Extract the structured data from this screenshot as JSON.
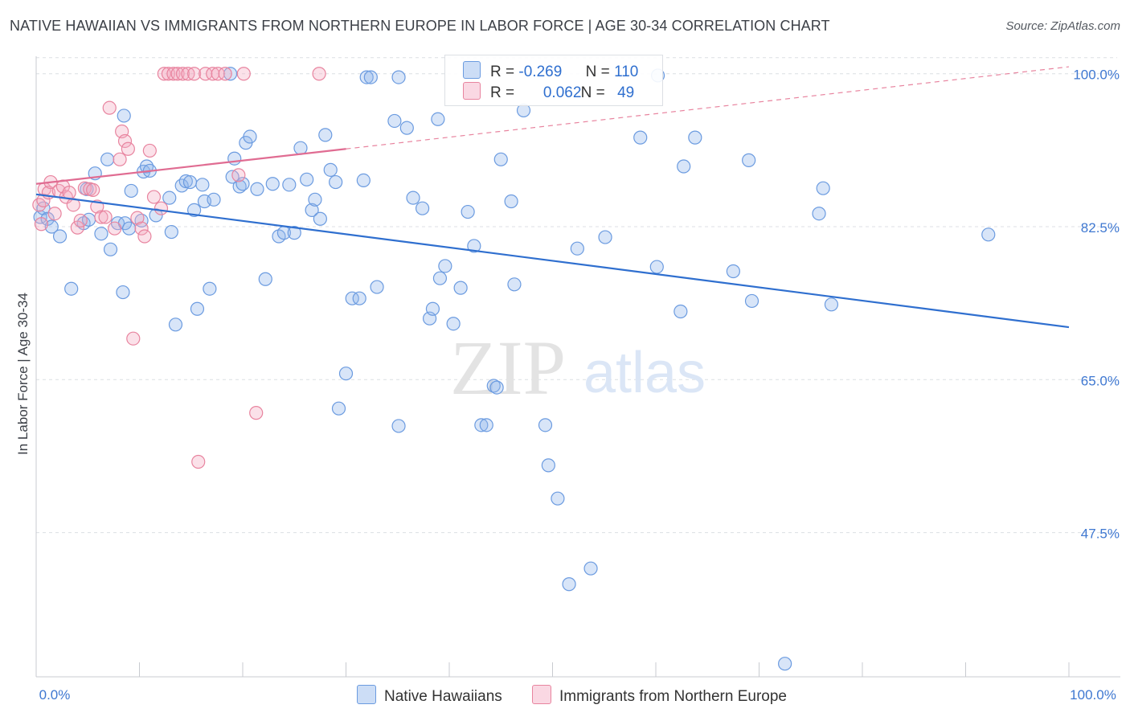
{
  "header": {
    "title": "NATIVE HAWAIIAN VS IMMIGRANTS FROM NORTHERN EUROPE IN LABOR FORCE | AGE 30-34 CORRELATION CHART",
    "source": "Source: ZipAtlas.com"
  },
  "watermark": {
    "zip": "ZIP",
    "atlas": "atlas"
  },
  "legend": {
    "rows": [
      {
        "r_label": "R =",
        "r_value": "-0.269",
        "n_label": "N =",
        "n_value": "110",
        "color": "#8fb4ea"
      },
      {
        "r_label": "R =",
        "r_value": "0.062",
        "n_label": "N =",
        "n_value": "49",
        "color": "#f4a9c0"
      }
    ]
  },
  "chart_data": {
    "type": "scatter",
    "title": "NATIVE HAWAIIAN VS IMMIGRANTS FROM NORTHERN EUROPE IN LABOR FORCE | AGE 30-34 CORRELATION CHART",
    "xlabel": "",
    "ylabel": "In Labor Force | Age 30-34",
    "xlim": [
      0,
      100
    ],
    "ylim": [
      31,
      102
    ],
    "x_tick_labels": [
      "0.0%",
      "100.0%"
    ],
    "y_ticks": [
      47.5,
      65.0,
      82.5,
      100.0
    ],
    "y_tick_labels": [
      "47.5%",
      "65.0%",
      "82.5%",
      "100.0%"
    ],
    "grid": true,
    "legend_position": "top-center",
    "series": [
      {
        "name": "Native Hawaiians",
        "color": "#6b9be0",
        "fill": "rgba(143,180,234,0.35)",
        "trend": {
          "x": [
            0,
            100
          ],
          "y": [
            86.2,
            71.0
          ],
          "style": "solid"
        },
        "points": [
          [
            0.4,
            83.6
          ],
          [
            0.7,
            84.6
          ],
          [
            1.1,
            83.4
          ],
          [
            1.5,
            82.5
          ],
          [
            2.3,
            81.4
          ],
          [
            3.4,
            75.4
          ],
          [
            4.6,
            82.9
          ],
          [
            5.1,
            83.3
          ],
          [
            4.9,
            86.8
          ],
          [
            5.7,
            88.6
          ],
          [
            6.3,
            81.7
          ],
          [
            6.9,
            90.2
          ],
          [
            7.2,
            79.9
          ],
          [
            7.9,
            82.9
          ],
          [
            8.4,
            75.0
          ],
          [
            8.5,
            95.2
          ],
          [
            8.6,
            82.9
          ],
          [
            9.0,
            82.3
          ],
          [
            9.2,
            86.6
          ],
          [
            10.2,
            83.2
          ],
          [
            10.4,
            88.8
          ],
          [
            10.7,
            89.4
          ],
          [
            11.0,
            88.9
          ],
          [
            11.6,
            83.8
          ],
          [
            12.9,
            85.8
          ],
          [
            13.1,
            81.9
          ],
          [
            13.5,
            71.3
          ],
          [
            14.1,
            87.2
          ],
          [
            14.5,
            87.7
          ],
          [
            14.9,
            87.6
          ],
          [
            15.3,
            84.4
          ],
          [
            15.6,
            73.1
          ],
          [
            16.1,
            87.3
          ],
          [
            16.3,
            85.4
          ],
          [
            16.8,
            75.4
          ],
          [
            17.2,
            85.6
          ],
          [
            18.8,
            100.0
          ],
          [
            19.0,
            88.2
          ],
          [
            19.2,
            90.3
          ],
          [
            19.7,
            87.1
          ],
          [
            20.0,
            87.4
          ],
          [
            20.3,
            92.1
          ],
          [
            20.7,
            92.8
          ],
          [
            21.4,
            86.8
          ],
          [
            22.2,
            76.5
          ],
          [
            22.9,
            87.4
          ],
          [
            23.5,
            81.4
          ],
          [
            24.0,
            81.8
          ],
          [
            24.5,
            87.3
          ],
          [
            25.0,
            81.8
          ],
          [
            25.6,
            91.5
          ],
          [
            26.2,
            87.9
          ],
          [
            26.7,
            84.4
          ],
          [
            27.0,
            85.6
          ],
          [
            27.5,
            83.4
          ],
          [
            28.0,
            93.0
          ],
          [
            28.5,
            89.0
          ],
          [
            29.0,
            87.6
          ],
          [
            29.3,
            61.7
          ],
          [
            30.0,
            65.7
          ],
          [
            30.6,
            74.3
          ],
          [
            31.3,
            74.3
          ],
          [
            31.7,
            87.8
          ],
          [
            32.0,
            99.6
          ],
          [
            32.4,
            99.6
          ],
          [
            33.0,
            75.6
          ],
          [
            34.7,
            94.6
          ],
          [
            35.1,
            99.6
          ],
          [
            35.1,
            59.7
          ],
          [
            35.9,
            93.8
          ],
          [
            36.5,
            85.8
          ],
          [
            37.4,
            84.6
          ],
          [
            38.1,
            72.0
          ],
          [
            38.4,
            73.1
          ],
          [
            38.9,
            94.8
          ],
          [
            39.1,
            76.6
          ],
          [
            39.6,
            78.0
          ],
          [
            40.4,
            71.4
          ],
          [
            41.1,
            75.5
          ],
          [
            41.8,
            84.2
          ],
          [
            42.4,
            80.3
          ],
          [
            43.1,
            59.8
          ],
          [
            43.6,
            59.8
          ],
          [
            44.3,
            64.3
          ],
          [
            44.6,
            64.1
          ],
          [
            45.0,
            90.2
          ],
          [
            46.0,
            85.4
          ],
          [
            46.3,
            75.9
          ],
          [
            47.2,
            95.8
          ],
          [
            49.3,
            59.8
          ],
          [
            49.6,
            55.2
          ],
          [
            50.5,
            51.4
          ],
          [
            51.6,
            41.6
          ],
          [
            52.4,
            80.0
          ],
          [
            53.7,
            43.4
          ],
          [
            55.1,
            81.3
          ],
          [
            58.5,
            92.7
          ],
          [
            60.1,
            77.9
          ],
          [
            60.2,
            99.8
          ],
          [
            62.4,
            72.8
          ],
          [
            62.7,
            89.4
          ],
          [
            63.8,
            92.7
          ],
          [
            67.5,
            77.4
          ],
          [
            69.0,
            90.1
          ],
          [
            69.3,
            74.0
          ],
          [
            72.5,
            32.5
          ],
          [
            75.8,
            84.0
          ],
          [
            76.2,
            86.9
          ],
          [
            77.0,
            73.6
          ],
          [
            92.2,
            81.6
          ]
        ]
      },
      {
        "name": "Immigrants from Northern Europe",
        "color": "#e8849f",
        "fill": "rgba(244,169,192,0.35)",
        "trend": {
          "x": [
            0,
            30
          ],
          "y": [
            87.4,
            91.4
          ],
          "style": "solid",
          "extended_to": [
            100,
            100.8
          ]
        },
        "points": [
          [
            0.3,
            85.0
          ],
          [
            0.5,
            82.8
          ],
          [
            0.7,
            85.5
          ],
          [
            0.8,
            86.8
          ],
          [
            1.2,
            86.4
          ],
          [
            1.4,
            87.6
          ],
          [
            1.8,
            84.0
          ],
          [
            2.2,
            86.6
          ],
          [
            2.6,
            87.1
          ],
          [
            2.9,
            85.9
          ],
          [
            3.2,
            86.4
          ],
          [
            3.6,
            85.0
          ],
          [
            4.0,
            82.4
          ],
          [
            4.3,
            83.2
          ],
          [
            4.7,
            86.9
          ],
          [
            5.2,
            86.8
          ],
          [
            5.5,
            86.7
          ],
          [
            5.9,
            84.8
          ],
          [
            6.3,
            83.6
          ],
          [
            6.7,
            83.6
          ],
          [
            7.1,
            96.1
          ],
          [
            7.6,
            82.3
          ],
          [
            8.1,
            90.2
          ],
          [
            8.3,
            93.4
          ],
          [
            8.6,
            92.3
          ],
          [
            8.9,
            91.4
          ],
          [
            9.4,
            69.7
          ],
          [
            9.8,
            83.5
          ],
          [
            10.2,
            82.3
          ],
          [
            10.5,
            81.4
          ],
          [
            11.0,
            91.2
          ],
          [
            11.4,
            85.9
          ],
          [
            12.1,
            84.6
          ],
          [
            12.4,
            100.0
          ],
          [
            12.8,
            100.0
          ],
          [
            13.3,
            100.0
          ],
          [
            13.7,
            100.0
          ],
          [
            14.2,
            100.0
          ],
          [
            14.7,
            100.0
          ],
          [
            15.3,
            100.0
          ],
          [
            15.7,
            55.6
          ],
          [
            16.4,
            100.0
          ],
          [
            17.1,
            100.0
          ],
          [
            17.6,
            100.0
          ],
          [
            18.3,
            100.0
          ],
          [
            19.6,
            88.4
          ],
          [
            20.1,
            100.0
          ],
          [
            21.3,
            61.2
          ],
          [
            27.4,
            100.0
          ]
        ]
      }
    ]
  },
  "bottom_legend": {
    "items": [
      {
        "label": "Native Hawaiians",
        "color": "#8fb4ea"
      },
      {
        "label": "Immigrants from Northern Europe",
        "color": "#f4a9c0"
      }
    ]
  }
}
